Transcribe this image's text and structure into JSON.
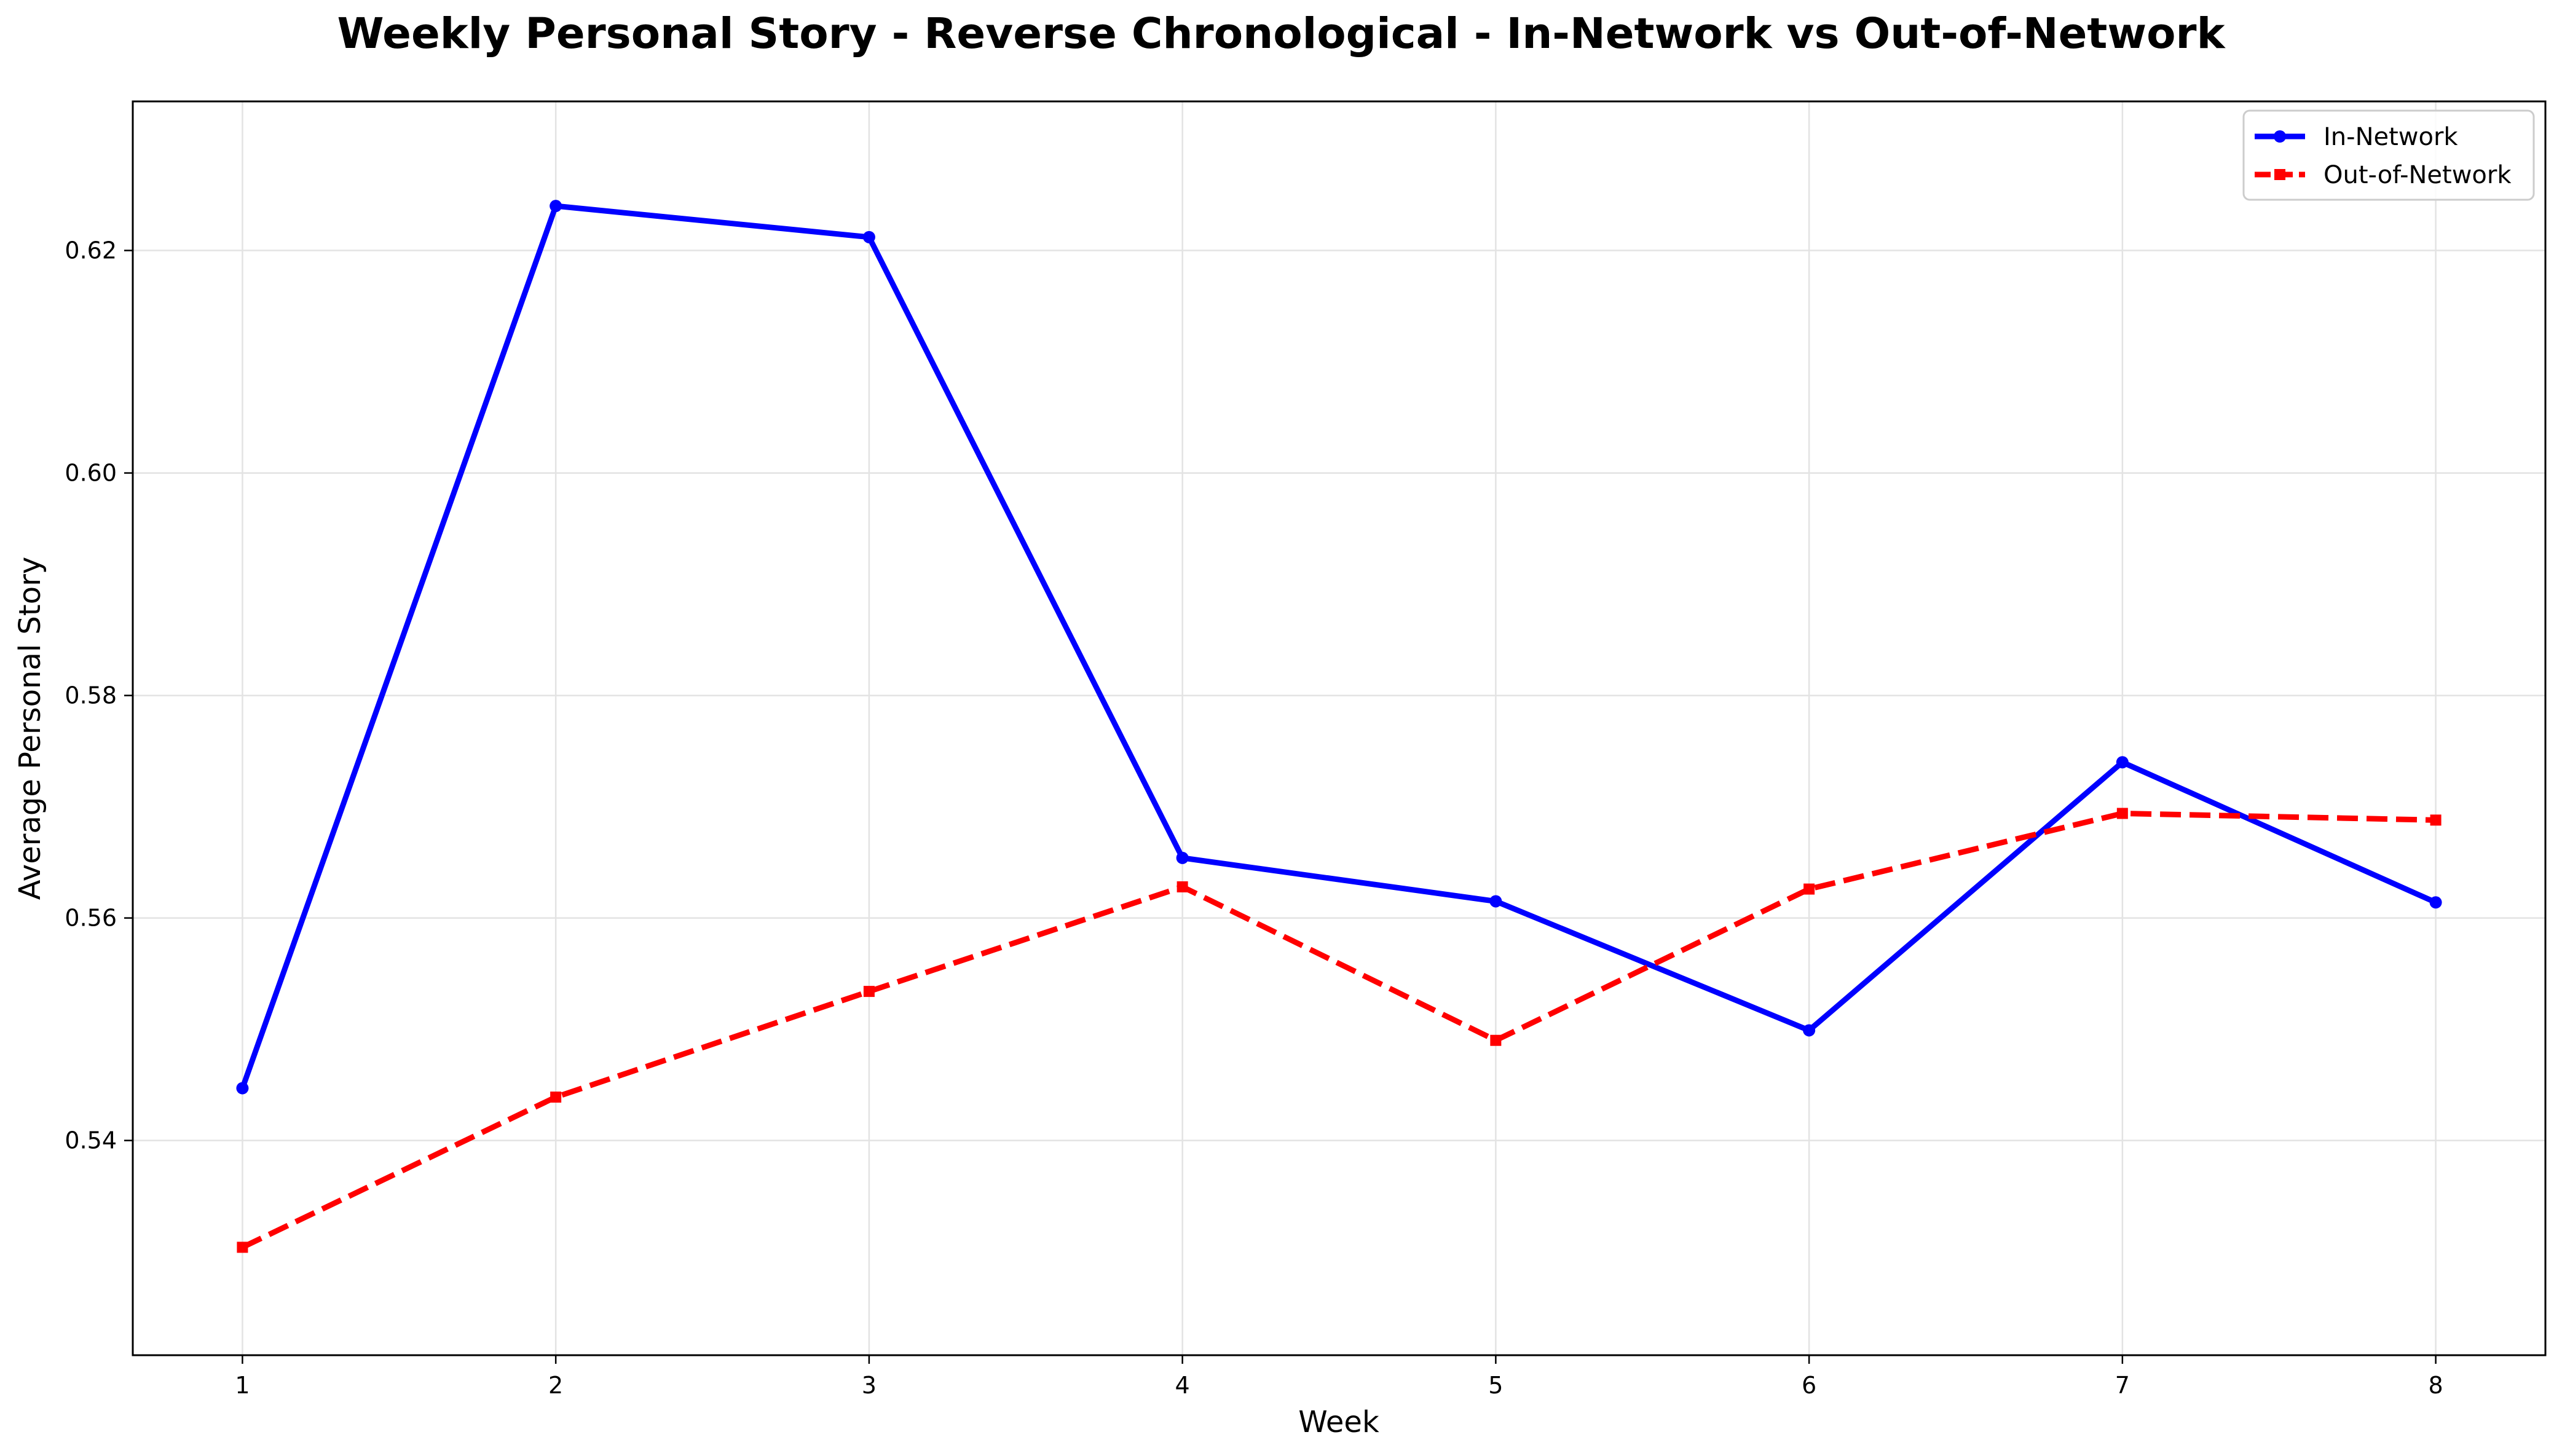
{
  "chart_data": {
    "type": "line",
    "title": "Weekly Personal Story - Reverse Chronological - In-Network vs Out-of-Network",
    "xlabel": "Week",
    "ylabel": "Average Personal Story",
    "x": [
      1,
      2,
      3,
      4,
      5,
      6,
      7,
      8
    ],
    "xticks": [
      "1",
      "2",
      "3",
      "4",
      "5",
      "6",
      "7",
      "8"
    ],
    "xlim": [
      0.65,
      8.35
    ],
    "ylim": [
      0.5207,
      0.6334
    ],
    "yticks": [
      0.54,
      0.56,
      0.58,
      0.6,
      0.62
    ],
    "ytick_labels": [
      "0.54",
      "0.56",
      "0.58",
      "0.60",
      "0.62"
    ],
    "grid": true,
    "legend_position": "top-right",
    "series": [
      {
        "name": "In-Network",
        "color": "#0000ff",
        "line_style": "solid",
        "marker": "circle",
        "values": [
          0.5447,
          0.624,
          0.6212,
          0.5654,
          0.5615,
          0.5499,
          0.574,
          0.5614
        ]
      },
      {
        "name": "Out-of-Network",
        "color": "#ff0000",
        "line_style": "dashed",
        "marker": "square",
        "values": [
          0.5304,
          0.5439,
          0.5534,
          0.5628,
          0.549,
          0.5626,
          0.5694,
          0.5688
        ]
      }
    ]
  }
}
